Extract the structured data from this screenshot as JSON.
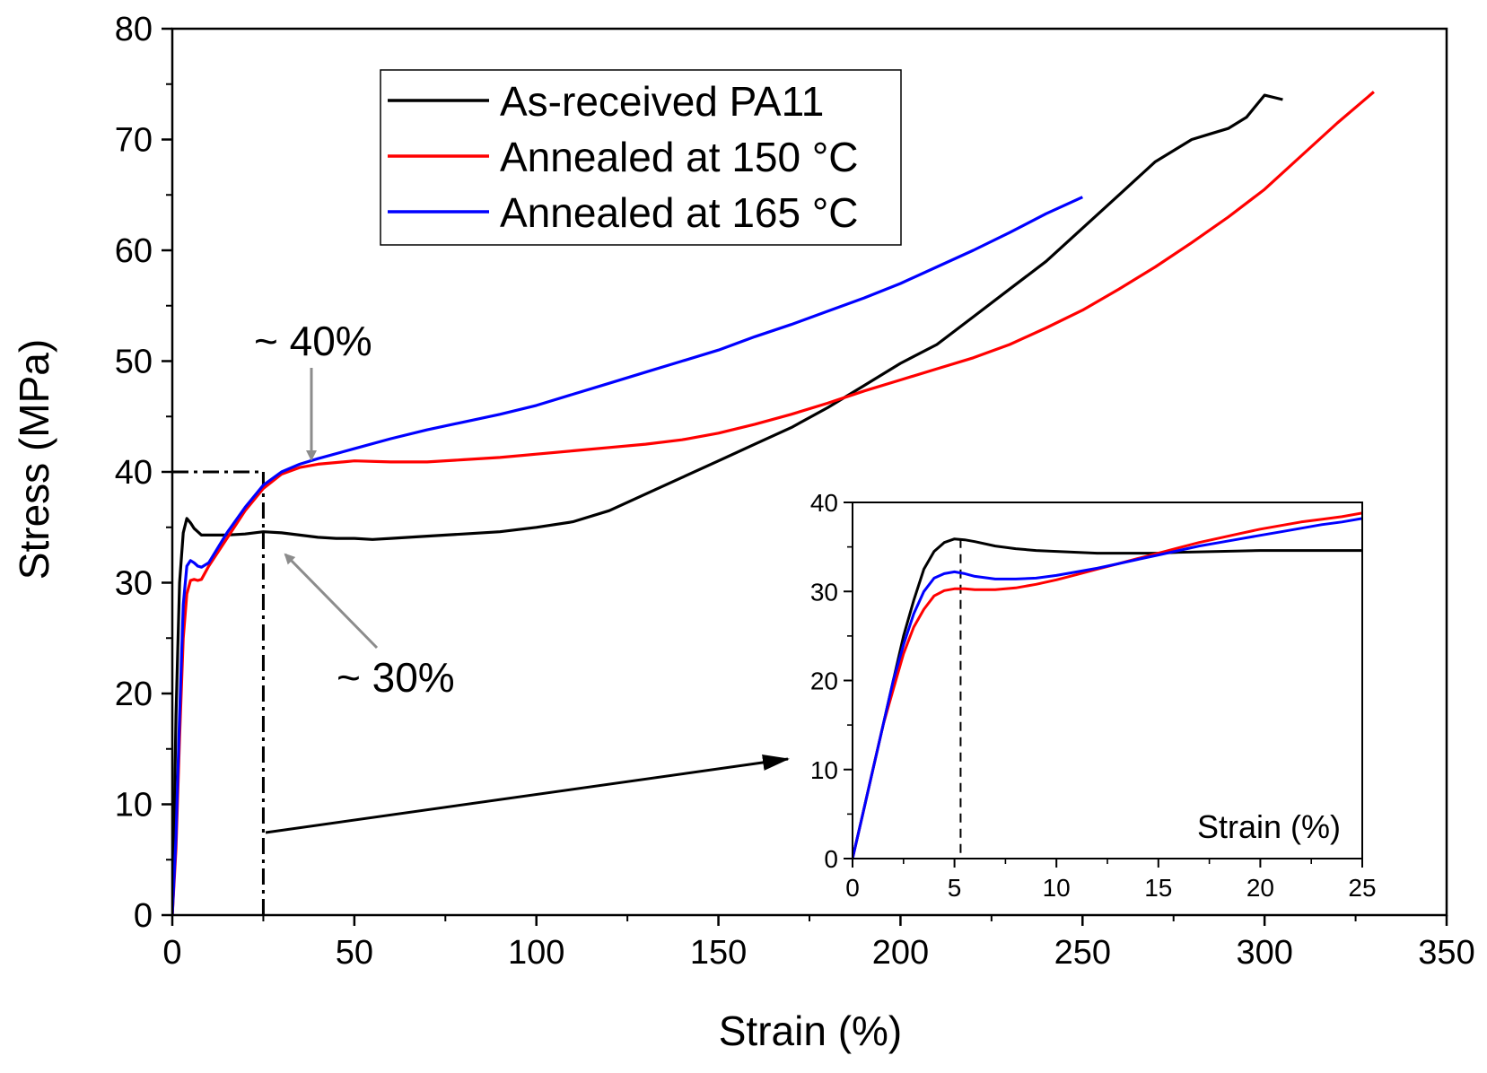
{
  "chart_data": [
    {
      "id": "main",
      "type": "line",
      "xlabel": "Strain (%)",
      "ylabel": "Stress (MPa)",
      "xlim": [
        0,
        350
      ],
      "ylim": [
        0,
        80
      ],
      "xticks": [
        "0",
        "50",
        "100",
        "150",
        "200",
        "250",
        "300",
        "350"
      ],
      "yticks": [
        "0",
        "10",
        "20",
        "30",
        "40",
        "50",
        "60",
        "70",
        "80"
      ],
      "legend_position": "top-center",
      "series": [
        {
          "name": "As-received PA11",
          "color": "#000000",
          "x": [
            0,
            0.5,
            1,
            2,
            3,
            4,
            5,
            6,
            7,
            8,
            10,
            15,
            20,
            25,
            30,
            35,
            40,
            45,
            50,
            55,
            60,
            70,
            80,
            90,
            100,
            110,
            120,
            130,
            140,
            150,
            160,
            170,
            180,
            190,
            200,
            210,
            220,
            230,
            240,
            250,
            260,
            270,
            280,
            285,
            290,
            295,
            300,
            305
          ],
          "y": [
            0,
            8,
            18,
            30,
            34.5,
            35.8,
            35.4,
            34.9,
            34.6,
            34.3,
            34.3,
            34.3,
            34.4,
            34.6,
            34.5,
            34.3,
            34.1,
            34.0,
            34.0,
            33.9,
            34.0,
            34.2,
            34.4,
            34.6,
            35.0,
            35.5,
            36.5,
            38.0,
            39.5,
            41.0,
            42.5,
            44.0,
            45.8,
            47.8,
            49.8,
            51.5,
            54.0,
            56.5,
            59.0,
            62.0,
            65.0,
            68.0,
            70.0,
            70.5,
            71.0,
            72.0,
            74.0,
            73.6
          ]
        },
        {
          "name": "Annealed at 150 °C",
          "color": "#ff0000",
          "x": [
            0,
            1,
            2,
            3,
            4,
            5,
            6,
            7,
            8,
            10,
            15,
            20,
            25,
            30,
            35,
            40,
            50,
            60,
            70,
            80,
            90,
            100,
            110,
            120,
            130,
            140,
            150,
            160,
            170,
            180,
            190,
            200,
            210,
            220,
            230,
            240,
            250,
            260,
            270,
            280,
            290,
            300,
            310,
            320,
            330
          ],
          "y": [
            0,
            6,
            16,
            25,
            29,
            30.2,
            30.3,
            30.2,
            30.3,
            31.5,
            34.0,
            36.5,
            38.5,
            39.8,
            40.4,
            40.7,
            41.0,
            40.9,
            40.9,
            41.1,
            41.3,
            41.6,
            41.9,
            42.2,
            42.5,
            42.9,
            43.5,
            44.3,
            45.2,
            46.2,
            47.3,
            48.3,
            49.3,
            50.3,
            51.5,
            53.0,
            54.6,
            56.5,
            58.5,
            60.7,
            63.0,
            65.5,
            68.5,
            71.5,
            74.3
          ]
        },
        {
          "name": "Annealed at 165 °C",
          "color": "#0000ff",
          "x": [
            0,
            1,
            2,
            3,
            4,
            5,
            6,
            7,
            8,
            10,
            15,
            20,
            25,
            30,
            35,
            40,
            50,
            60,
            70,
            80,
            90,
            100,
            110,
            120,
            130,
            140,
            150,
            160,
            170,
            180,
            190,
            200,
            210,
            220,
            230,
            240,
            250
          ],
          "y": [
            0,
            7,
            18,
            28,
            31.5,
            32.0,
            31.8,
            31.5,
            31.4,
            31.8,
            34.5,
            36.8,
            38.8,
            40.0,
            40.7,
            41.2,
            42.1,
            43.0,
            43.8,
            44.5,
            45.2,
            46.0,
            47.0,
            48.0,
            49.0,
            50.0,
            51.0,
            52.2,
            53.3,
            54.5,
            55.7,
            57.0,
            58.5,
            60.0,
            61.6,
            63.3,
            64.8
          ]
        }
      ],
      "annotations": [
        {
          "text": "~ 40%",
          "target_x": 38,
          "target_y": 40.5
        },
        {
          "text": "~ 30%",
          "target_x": 30,
          "target_y": 33.5
        }
      ],
      "reference_lines": [
        {
          "style": "dash-dot",
          "from": [
            0,
            40
          ],
          "to": [
            25,
            40
          ]
        },
        {
          "style": "dash-dot",
          "from": [
            25,
            40
          ],
          "to": [
            25,
            0
          ]
        }
      ]
    },
    {
      "id": "inset",
      "type": "line",
      "xlabel": "Strain (%)",
      "ylabel": "",
      "xlim": [
        0,
        25
      ],
      "ylim": [
        0,
        40
      ],
      "xticks": [
        "0",
        "5",
        "10",
        "15",
        "20",
        "25"
      ],
      "yticks": [
        "0",
        "10",
        "20",
        "30",
        "40"
      ],
      "reference_line_x": 5.3,
      "series": [
        {
          "name": "As-received PA11",
          "color": "#000000",
          "x": [
            0,
            0.5,
            1,
            1.5,
            2,
            2.5,
            3,
            3.5,
            4,
            4.5,
            5,
            5.5,
            6,
            7,
            8,
            9,
            10,
            11,
            12,
            13,
            14,
            15,
            16,
            18,
            20,
            22,
            25
          ],
          "y": [
            0,
            5,
            10,
            15,
            20,
            25,
            29,
            32.5,
            34.5,
            35.5,
            35.9,
            35.8,
            35.6,
            35.1,
            34.8,
            34.6,
            34.5,
            34.4,
            34.3,
            34.3,
            34.3,
            34.3,
            34.4,
            34.5,
            34.6,
            34.6,
            34.6
          ]
        },
        {
          "name": "Annealed at 150 °C",
          "color": "#ff0000",
          "x": [
            0,
            0.5,
            1,
            1.5,
            2,
            2.5,
            3,
            3.5,
            4,
            4.5,
            5,
            5.5,
            6,
            7,
            8,
            9,
            10,
            11,
            12,
            13,
            14,
            15,
            16,
            17,
            18,
            19,
            20,
            21,
            22,
            23,
            24,
            25
          ],
          "y": [
            0,
            5,
            10,
            15,
            19,
            23,
            26,
            28,
            29.5,
            30.1,
            30.3,
            30.3,
            30.2,
            30.2,
            30.4,
            30.8,
            31.3,
            31.9,
            32.5,
            33.1,
            33.7,
            34.3,
            34.9,
            35.5,
            36.0,
            36.5,
            37.0,
            37.4,
            37.8,
            38.1,
            38.4,
            38.8
          ]
        },
        {
          "name": "Annealed at 165 °C",
          "color": "#0000ff",
          "x": [
            0,
            0.5,
            1,
            1.5,
            2,
            2.5,
            3,
            3.5,
            4,
            4.5,
            5,
            5.5,
            6,
            7,
            8,
            9,
            10,
            11,
            12,
            13,
            14,
            15,
            16,
            17,
            18,
            19,
            20,
            21,
            22,
            23,
            24,
            25
          ],
          "y": [
            0,
            5,
            10,
            15,
            20,
            24,
            27.5,
            30,
            31.5,
            32.0,
            32.2,
            32.0,
            31.7,
            31.4,
            31.4,
            31.5,
            31.8,
            32.2,
            32.6,
            33.1,
            33.6,
            34.1,
            34.6,
            35.1,
            35.5,
            35.9,
            36.3,
            36.7,
            37.1,
            37.5,
            37.8,
            38.2
          ]
        }
      ]
    }
  ]
}
